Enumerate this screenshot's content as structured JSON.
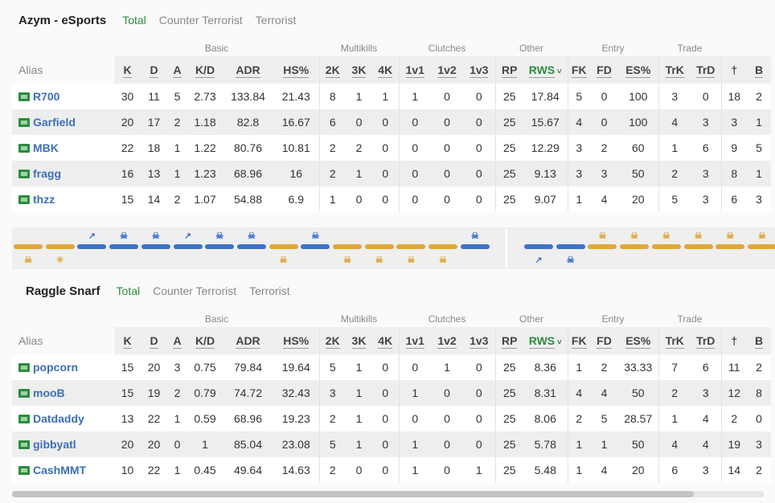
{
  "tabs": [
    "Total",
    "Counter Terrorist",
    "Terrorist"
  ],
  "group_headers": {
    "basic": "Basic",
    "multikills": "Multikills",
    "clutches": "Clutches",
    "other": "Other",
    "entry": "Entry",
    "trade": "Trade"
  },
  "columns": {
    "alias": "Alias",
    "k": "K",
    "d": "D",
    "a": "A",
    "kd": "K/D",
    "adr": "ADR",
    "hs": "HS%",
    "k2": "2K",
    "k3": "3K",
    "k4": "4K",
    "c1": "1v1",
    "c2": "1v2",
    "c3": "1v3",
    "rp": "RP",
    "rws": "RWS",
    "fk": "FK",
    "fd": "FD",
    "es": "ES%",
    "trk": "TrK",
    "trd": "TrD",
    "ex1": "",
    "ex2": "B"
  },
  "colors": {
    "accent_green": "#2e8b3e",
    "ct_blue": "#3d72c7",
    "t_orange": "#e0a63a",
    "alias_blue": "#3d6fb5"
  },
  "teams": [
    {
      "name": "Azym - eSports",
      "players": [
        {
          "alias": "R700",
          "k": "30",
          "d": "11",
          "a": "5",
          "kd": "2.73",
          "adr": "133.84",
          "hs": "21.43",
          "k2": "8",
          "k3": "1",
          "k4": "1",
          "c1": "1",
          "c2": "0",
          "c3": "0",
          "rp": "25",
          "rws": "17.84",
          "fk": "5",
          "fd": "0",
          "es": "100",
          "trk": "3",
          "trd": "0",
          "ex1": "18",
          "ex2": "2"
        },
        {
          "alias": "Garfield",
          "k": "20",
          "d": "17",
          "a": "2",
          "kd": "1.18",
          "adr": "82.8",
          "hs": "16.67",
          "k2": "6",
          "k3": "0",
          "k4": "0",
          "c1": "0",
          "c2": "0",
          "c3": "0",
          "rp": "25",
          "rws": "15.67",
          "fk": "4",
          "fd": "0",
          "es": "100",
          "trk": "4",
          "trd": "3",
          "ex1": "3",
          "ex2": "1"
        },
        {
          "alias": "MBK",
          "k": "22",
          "d": "18",
          "a": "1",
          "kd": "1.22",
          "adr": "80.76",
          "hs": "10.81",
          "k2": "2",
          "k3": "2",
          "k4": "0",
          "c1": "0",
          "c2": "0",
          "c3": "0",
          "rp": "25",
          "rws": "12.29",
          "fk": "3",
          "fd": "2",
          "es": "60",
          "trk": "1",
          "trd": "6",
          "ex1": "9",
          "ex2": "5"
        },
        {
          "alias": "fragg",
          "k": "16",
          "d": "13",
          "a": "1",
          "kd": "1.23",
          "adr": "68.96",
          "hs": "16",
          "k2": "2",
          "k3": "1",
          "k4": "0",
          "c1": "0",
          "c2": "0",
          "c3": "0",
          "rp": "25",
          "rws": "9.13",
          "fk": "3",
          "fd": "3",
          "es": "50",
          "trk": "2",
          "trd": "3",
          "ex1": "8",
          "ex2": "1"
        },
        {
          "alias": "thzz",
          "k": "15",
          "d": "14",
          "a": "2",
          "kd": "1.07",
          "adr": "54.88",
          "hs": "6.9",
          "k2": "1",
          "k3": "0",
          "k4": "0",
          "c1": "0",
          "c2": "0",
          "c3": "0",
          "rp": "25",
          "rws": "9.07",
          "fk": "1",
          "fd": "4",
          "es": "20",
          "trk": "5",
          "trd": "3",
          "ex1": "6",
          "ex2": "3"
        }
      ]
    },
    {
      "name": "Raggle Snarf",
      "players": [
        {
          "alias": "popcorn",
          "k": "15",
          "d": "20",
          "a": "3",
          "kd": "0.75",
          "adr": "79.84",
          "hs": "19.64",
          "k2": "5",
          "k3": "1",
          "k4": "0",
          "c1": "0",
          "c2": "1",
          "c3": "0",
          "rp": "25",
          "rws": "8.36",
          "fk": "1",
          "fd": "2",
          "es": "33.33",
          "trk": "7",
          "trd": "6",
          "ex1": "11",
          "ex2": "2"
        },
        {
          "alias": "mooB",
          "k": "15",
          "d": "19",
          "a": "2",
          "kd": "0.79",
          "adr": "74.72",
          "hs": "32.43",
          "k2": "3",
          "k3": "1",
          "k4": "0",
          "c1": "1",
          "c2": "0",
          "c3": "0",
          "rp": "25",
          "rws": "8.31",
          "fk": "4",
          "fd": "4",
          "es": "50",
          "trk": "2",
          "trd": "3",
          "ex1": "12",
          "ex2": "8"
        },
        {
          "alias": "Datdaddy",
          "k": "13",
          "d": "22",
          "a": "1",
          "kd": "0.59",
          "adr": "68.96",
          "hs": "19.23",
          "k2": "2",
          "k3": "1",
          "k4": "0",
          "c1": "0",
          "c2": "0",
          "c3": "0",
          "rp": "25",
          "rws": "8.06",
          "fk": "2",
          "fd": "5",
          "es": "28.57",
          "trk": "1",
          "trd": "4",
          "ex1": "2",
          "ex2": "0"
        },
        {
          "alias": "gibbyatl",
          "k": "20",
          "d": "20",
          "a": "0",
          "kd": "1",
          "adr": "85.04",
          "hs": "23.08",
          "k2": "5",
          "k3": "1",
          "k4": "0",
          "c1": "1",
          "c2": "0",
          "c3": "0",
          "rp": "25",
          "rws": "5.78",
          "fk": "1",
          "fd": "1",
          "es": "50",
          "trk": "4",
          "trd": "4",
          "ex1": "19",
          "ex2": "3"
        },
        {
          "alias": "CashMMT",
          "k": "10",
          "d": "22",
          "a": "1",
          "kd": "0.45",
          "adr": "49.64",
          "hs": "14.63",
          "k2": "2",
          "k3": "0",
          "k4": "0",
          "c1": "1",
          "c2": "0",
          "c3": "1",
          "rp": "25",
          "rws": "5.48",
          "fk": "1",
          "fd": "4",
          "es": "20",
          "trk": "6",
          "trd": "3",
          "ex1": "14",
          "ex2": "2"
        }
      ]
    }
  ],
  "rounds": {
    "first_half": [
      {
        "winner": "t",
        "icon": "skull-icon",
        "icon_pos": "down"
      },
      {
        "winner": "t",
        "icon": "sun-icon",
        "icon_pos": "down"
      },
      {
        "winner": "ct",
        "icon": "defuse-icon",
        "icon_pos": "up"
      },
      {
        "winner": "ct",
        "icon": "skull-icon",
        "icon_pos": "up"
      },
      {
        "winner": "ct",
        "icon": "skull-icon",
        "icon_pos": "up"
      },
      {
        "winner": "ct",
        "icon": "defuse-icon",
        "icon_pos": "up"
      },
      {
        "winner": "ct",
        "icon": "skull-icon",
        "icon_pos": "up"
      },
      {
        "winner": "ct",
        "icon": "skull-icon",
        "icon_pos": "up"
      },
      {
        "winner": "t",
        "icon": "skull-icon",
        "icon_pos": "down"
      },
      {
        "winner": "ct",
        "icon": "skull-icon",
        "icon_pos": "up"
      },
      {
        "winner": "t",
        "icon": "skull-icon",
        "icon_pos": "down"
      },
      {
        "winner": "t",
        "icon": "skull-icon",
        "icon_pos": "down"
      },
      {
        "winner": "t",
        "icon": "skull-icon",
        "icon_pos": "down"
      },
      {
        "winner": "t",
        "icon": "skull-icon",
        "icon_pos": "down"
      },
      {
        "winner": "ct",
        "icon": "skull-icon",
        "icon_pos": "up"
      }
    ],
    "second_half": [
      {
        "winner": "ct",
        "icon": "defuse-icon",
        "icon_pos": "down"
      },
      {
        "winner": "ct",
        "icon": "skull-icon",
        "icon_pos": "down"
      },
      {
        "winner": "t",
        "icon": "skull-icon",
        "icon_pos": "up"
      },
      {
        "winner": "t",
        "icon": "skull-icon",
        "icon_pos": "up"
      },
      {
        "winner": "t",
        "icon": "skull-icon",
        "icon_pos": "up"
      },
      {
        "winner": "t",
        "icon": "skull-icon",
        "icon_pos": "up"
      },
      {
        "winner": "t",
        "icon": "skull-icon",
        "icon_pos": "up"
      },
      {
        "winner": "t",
        "icon": "skull-icon",
        "icon_pos": "up"
      }
    ]
  }
}
